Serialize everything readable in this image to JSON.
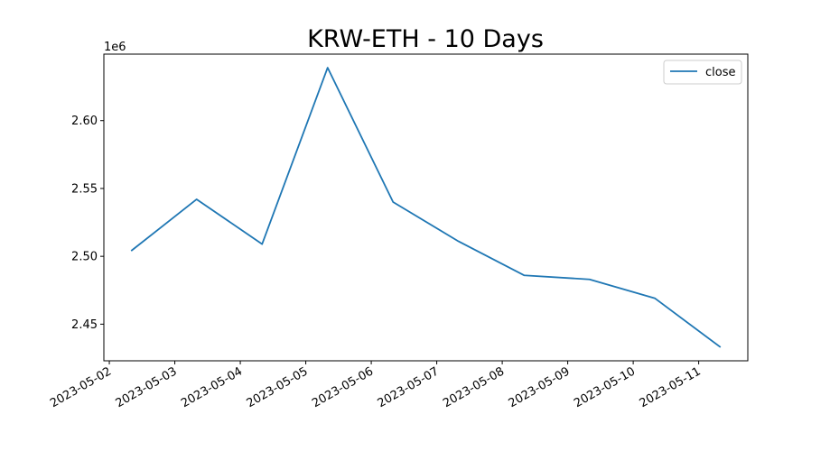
{
  "chart_data": {
    "type": "line",
    "title": "KRW-ETH - 10 Days",
    "xlabel": "",
    "ylabel": "",
    "y_offset_label": "1e6",
    "x": [
      "2023-05-02 08:00",
      "2023-05-03 08:00",
      "2023-05-04 08:00",
      "2023-05-05 08:00",
      "2023-05-06 08:00",
      "2023-05-07 08:00",
      "2023-05-08 08:00",
      "2023-05-09 08:00",
      "2023-05-10 08:00",
      "2023-05-11 08:00"
    ],
    "series": [
      {
        "name": "close",
        "color": "#1f77b4",
        "values": [
          2504000,
          2542000,
          2509000,
          2639000,
          2540000,
          2511000,
          2486000,
          2483000,
          2469000,
          2433000
        ]
      }
    ],
    "x_ticks": [
      "2023-05-02",
      "2023-05-03",
      "2023-05-04",
      "2023-05-05",
      "2023-05-06",
      "2023-05-07",
      "2023-05-08",
      "2023-05-09",
      "2023-05-10",
      "2023-05-11"
    ],
    "y_ticks": [
      {
        "value": 2450000,
        "label": "2.45"
      },
      {
        "value": 2500000,
        "label": "2.50"
      },
      {
        "value": 2550000,
        "label": "2.55"
      },
      {
        "value": 2600000,
        "label": "2.60"
      }
    ],
    "xlim": [
      "2023-05-01 22:00",
      "2023-05-11 18:00"
    ],
    "ylim": [
      2423000,
      2649000
    ],
    "grid": false,
    "legend_position": "top-right"
  }
}
